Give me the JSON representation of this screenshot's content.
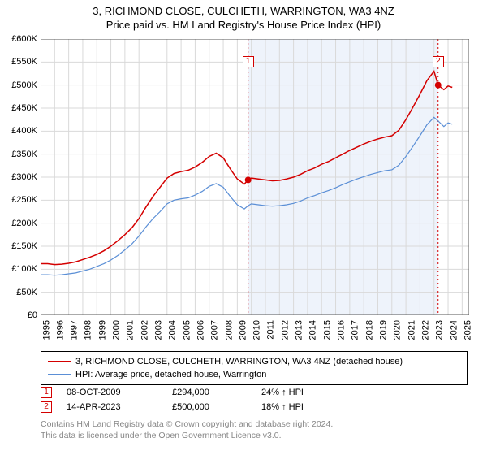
{
  "title": "3, RICHMOND CLOSE, CULCHETH, WARRINGTON, WA3 4NZ",
  "subtitle": "Price paid vs. HM Land Registry's House Price Index (HPI)",
  "chart": {
    "type": "line",
    "background_color": "#ffffff",
    "shade_color": "#eef3fb",
    "grid_color": "#d9d9d9",
    "axis_color": "#555555",
    "xlim": [
      1995,
      2025.5
    ],
    "ylim": [
      0,
      600000
    ],
    "ytick_step": 50000,
    "yticks": [
      "£0",
      "£50K",
      "£100K",
      "£150K",
      "£200K",
      "£250K",
      "£300K",
      "£350K",
      "£400K",
      "£450K",
      "£500K",
      "£550K",
      "£600K"
    ],
    "xticks": [
      1995,
      1996,
      1997,
      1998,
      1999,
      2000,
      2001,
      2002,
      2003,
      2004,
      2005,
      2006,
      2007,
      2008,
      2009,
      2010,
      2011,
      2012,
      2013,
      2014,
      2015,
      2016,
      2017,
      2018,
      2019,
      2020,
      2021,
      2022,
      2023,
      2024,
      2025
    ],
    "shade_start": 2009.77,
    "shade_end": 2023.29,
    "series": [
      {
        "name": "property",
        "label": "3, RICHMOND CLOSE, CULCHETH, WARRINGTON, WA3 4NZ (detached house)",
        "color": "#d40000",
        "width": 1.5,
        "data": [
          [
            1995,
            112000
          ],
          [
            1995.5,
            112000
          ],
          [
            1996,
            110000
          ],
          [
            1996.5,
            111000
          ],
          [
            1997,
            113000
          ],
          [
            1997.5,
            116000
          ],
          [
            1998,
            121000
          ],
          [
            1998.5,
            126000
          ],
          [
            1999,
            132000
          ],
          [
            1999.5,
            140000
          ],
          [
            2000,
            150000
          ],
          [
            2000.5,
            162000
          ],
          [
            2001,
            175000
          ],
          [
            2001.5,
            190000
          ],
          [
            2002,
            210000
          ],
          [
            2002.5,
            235000
          ],
          [
            2003,
            258000
          ],
          [
            2003.5,
            278000
          ],
          [
            2004,
            298000
          ],
          [
            2004.5,
            308000
          ],
          [
            2005,
            312000
          ],
          [
            2005.5,
            315000
          ],
          [
            2006,
            322000
          ],
          [
            2006.5,
            332000
          ],
          [
            2007,
            345000
          ],
          [
            2007.5,
            352000
          ],
          [
            2008,
            342000
          ],
          [
            2008.5,
            318000
          ],
          [
            2009,
            296000
          ],
          [
            2009.5,
            285000
          ],
          [
            2009.77,
            294000
          ],
          [
            2010,
            298000
          ],
          [
            2010.5,
            296000
          ],
          [
            2011,
            294000
          ],
          [
            2011.5,
            292000
          ],
          [
            2012,
            293000
          ],
          [
            2012.5,
            296000
          ],
          [
            2013,
            300000
          ],
          [
            2013.5,
            306000
          ],
          [
            2014,
            314000
          ],
          [
            2014.5,
            320000
          ],
          [
            2015,
            328000
          ],
          [
            2015.5,
            334000
          ],
          [
            2016,
            342000
          ],
          [
            2016.5,
            350000
          ],
          [
            2017,
            358000
          ],
          [
            2017.5,
            365000
          ],
          [
            2018,
            372000
          ],
          [
            2018.5,
            378000
          ],
          [
            2019,
            383000
          ],
          [
            2019.5,
            387000
          ],
          [
            2020,
            390000
          ],
          [
            2020.5,
            402000
          ],
          [
            2021,
            425000
          ],
          [
            2021.5,
            452000
          ],
          [
            2022,
            480000
          ],
          [
            2022.5,
            510000
          ],
          [
            2023,
            530000
          ],
          [
            2023.29,
            500000
          ],
          [
            2023.7,
            490000
          ],
          [
            2024,
            498000
          ],
          [
            2024.3,
            495000
          ]
        ]
      },
      {
        "name": "hpi",
        "label": "HPI: Average price, detached house, Warrington",
        "color": "#5b8fd6",
        "width": 1.2,
        "data": [
          [
            1995,
            88000
          ],
          [
            1995.5,
            88000
          ],
          [
            1996,
            87000
          ],
          [
            1996.5,
            88000
          ],
          [
            1997,
            90000
          ],
          [
            1997.5,
            92000
          ],
          [
            1998,
            96000
          ],
          [
            1998.5,
            100000
          ],
          [
            1999,
            106000
          ],
          [
            1999.5,
            112000
          ],
          [
            2000,
            120000
          ],
          [
            2000.5,
            130000
          ],
          [
            2001,
            142000
          ],
          [
            2001.5,
            155000
          ],
          [
            2002,
            172000
          ],
          [
            2002.5,
            192000
          ],
          [
            2003,
            210000
          ],
          [
            2003.5,
            225000
          ],
          [
            2004,
            242000
          ],
          [
            2004.5,
            250000
          ],
          [
            2005,
            253000
          ],
          [
            2005.5,
            255000
          ],
          [
            2006,
            261000
          ],
          [
            2006.5,
            269000
          ],
          [
            2007,
            280000
          ],
          [
            2007.5,
            286000
          ],
          [
            2008,
            278000
          ],
          [
            2008.5,
            258000
          ],
          [
            2009,
            240000
          ],
          [
            2009.5,
            231000
          ],
          [
            2009.77,
            238000
          ],
          [
            2010,
            242000
          ],
          [
            2010.5,
            240000
          ],
          [
            2011,
            238000
          ],
          [
            2011.5,
            237000
          ],
          [
            2012,
            238000
          ],
          [
            2012.5,
            240000
          ],
          [
            2013,
            243000
          ],
          [
            2013.5,
            248000
          ],
          [
            2014,
            255000
          ],
          [
            2014.5,
            260000
          ],
          [
            2015,
            266000
          ],
          [
            2015.5,
            271000
          ],
          [
            2016,
            277000
          ],
          [
            2016.5,
            284000
          ],
          [
            2017,
            290000
          ],
          [
            2017.5,
            296000
          ],
          [
            2018,
            301000
          ],
          [
            2018.5,
            306000
          ],
          [
            2019,
            310000
          ],
          [
            2019.5,
            314000
          ],
          [
            2020,
            316000
          ],
          [
            2020.5,
            326000
          ],
          [
            2021,
            345000
          ],
          [
            2021.5,
            367000
          ],
          [
            2022,
            390000
          ],
          [
            2022.5,
            414000
          ],
          [
            2023,
            430000
          ],
          [
            2023.29,
            422000
          ],
          [
            2023.7,
            410000
          ],
          [
            2024,
            418000
          ],
          [
            2024.3,
            415000
          ]
        ]
      }
    ],
    "sales_markers": [
      {
        "n": "1",
        "x": 2009.77,
        "y": 294000,
        "color": "#d40000",
        "label_y": 550000
      },
      {
        "n": "2",
        "x": 2023.29,
        "y": 500000,
        "color": "#d40000",
        "label_y": 550000
      }
    ]
  },
  "legend": {
    "rows": [
      {
        "color": "#d40000",
        "text": "3, RICHMOND CLOSE, CULCHETH, WARRINGTON, WA3 4NZ (detached house)"
      },
      {
        "color": "#5b8fd6",
        "text": "HPI: Average price, detached house, Warrington"
      }
    ]
  },
  "sales": [
    {
      "n": "1",
      "color": "#d40000",
      "date": "08-OCT-2009",
      "price": "£294,000",
      "pct": "24% ↑ HPI"
    },
    {
      "n": "2",
      "color": "#d40000",
      "date": "14-APR-2023",
      "price": "£500,000",
      "pct": "18% ↑ HPI"
    }
  ],
  "footer": {
    "line1": "Contains HM Land Registry data © Crown copyright and database right 2024.",
    "line2": "This data is licensed under the Open Government Licence v3.0."
  }
}
